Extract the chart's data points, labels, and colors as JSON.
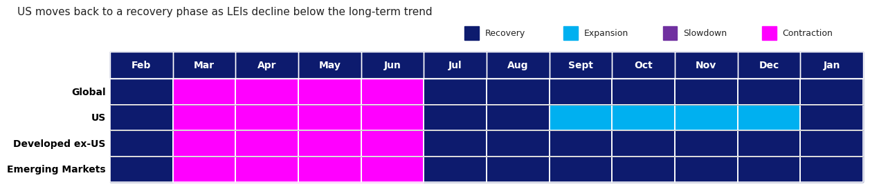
{
  "title": "US moves back to a recovery phase as LEIs decline below the long-term trend",
  "months": [
    "Feb",
    "Mar",
    "Apr",
    "May",
    "Jun",
    "Jul",
    "Aug",
    "Sept",
    "Oct",
    "Nov",
    "Dec",
    "Jan"
  ],
  "regions": [
    "Global",
    "US",
    "Developed ex-US",
    "Emerging Markets"
  ],
  "colors": {
    "Recovery": "#0d1b6e",
    "Expansion": "#00b0f0",
    "Slowdown": "#7030a0",
    "Contraction": "#ff00ff"
  },
  "grid": [
    [
      "Recovery",
      "Contraction",
      "Contraction",
      "Contraction",
      "Contraction",
      "Recovery",
      "Recovery",
      "Recovery",
      "Recovery",
      "Recovery",
      "Recovery",
      "Recovery"
    ],
    [
      "Recovery",
      "Contraction",
      "Contraction",
      "Contraction",
      "Contraction",
      "Recovery",
      "Recovery",
      "Expansion",
      "Expansion",
      "Expansion",
      "Expansion",
      "Recovery"
    ],
    [
      "Recovery",
      "Contraction",
      "Contraction",
      "Contraction",
      "Contraction",
      "Recovery",
      "Recovery",
      "Recovery",
      "Recovery",
      "Recovery",
      "Recovery",
      "Recovery"
    ],
    [
      "Recovery",
      "Contraction",
      "Contraction",
      "Contraction",
      "Contraction",
      "Recovery",
      "Recovery",
      "Recovery",
      "Recovery",
      "Recovery",
      "Recovery",
      "Recovery"
    ]
  ],
  "background_color": "#ffffff",
  "cell_edge_color": "#ffffff",
  "legend_items": [
    "Recovery",
    "Expansion",
    "Slowdown",
    "Contraction"
  ],
  "legend_colors": [
    "#0d1b6e",
    "#00b0f0",
    "#7030a0",
    "#ff00ff"
  ],
  "header_bg": "#0d1b6e",
  "header_text_color": "#ffffff",
  "row_label_fontsize": 10,
  "col_label_fontsize": 10,
  "title_fontsize": 11,
  "figsize": [
    12.8,
    7.2
  ]
}
